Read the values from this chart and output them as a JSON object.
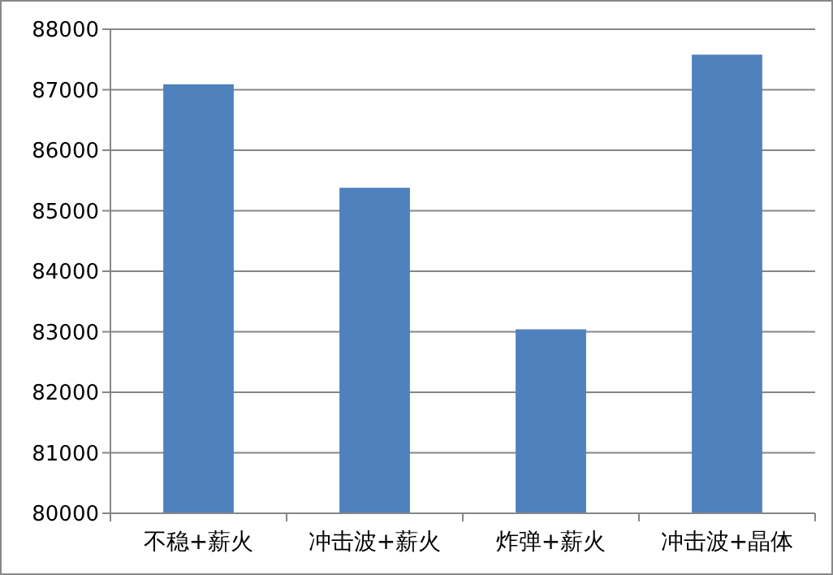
{
  "chart_data": {
    "type": "bar",
    "categories": [
      "不稳+薪火",
      "冲击波+薪火",
      "炸弹+薪火",
      "冲击波+晶体"
    ],
    "values": [
      87090,
      85380,
      83040,
      87580
    ],
    "color": "#4f81bd",
    "ylim": [
      80000,
      88000
    ],
    "yticks": [
      80000,
      81000,
      82000,
      83000,
      84000,
      85000,
      86000,
      87000,
      88000
    ],
    "grid": "y"
  }
}
